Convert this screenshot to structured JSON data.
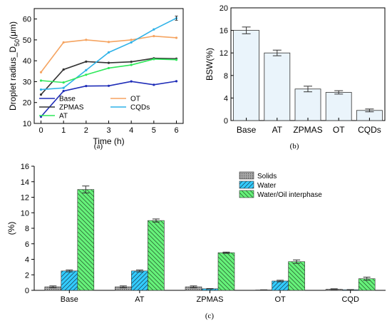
{
  "chart_data": [
    {
      "panel_label": "(a)",
      "type": "line",
      "xlabel": "Time (h)",
      "ylabel_main": "Droplet radius_D",
      "ylabel_sub": "50",
      "ylabel_unit": "(μm)",
      "xlim": [
        -0.3,
        6.3
      ],
      "ylim": [
        10,
        65
      ],
      "xticks": [
        0,
        1,
        2,
        3,
        4,
        5,
        6
      ],
      "yticks": [
        10,
        20,
        30,
        40,
        50,
        60
      ],
      "x": [
        0,
        1,
        2,
        3,
        4,
        5,
        6
      ],
      "legend_placement": "bottom",
      "series": [
        {
          "name": "Base",
          "color": "#1f2db8",
          "values": [
            13.2,
            25.5,
            27.9,
            28.0,
            30.1,
            28.5,
            30.2
          ]
        },
        {
          "name": "OT",
          "color": "#f5a461",
          "values": [
            34.5,
            48.8,
            50.0,
            49.0,
            50.0,
            51.8,
            51.0
          ]
        },
        {
          "name": "ZPMAS",
          "color": "#333333",
          "values": [
            23.8,
            35.8,
            39.6,
            39.0,
            39.5,
            41.2,
            41.0
          ]
        },
        {
          "name": "CQDs",
          "color": "#2fb2e8",
          "values": [
            26.2,
            27.0,
            35.5,
            44.0,
            48.8,
            55.0,
            60.4
          ]
        },
        {
          "name": "AT",
          "color": "#2ee85a",
          "values": [
            30.5,
            29.6,
            33.3,
            36.5,
            38.0,
            40.8,
            40.5
          ]
        }
      ]
    },
    {
      "panel_label": "(b)",
      "type": "bar",
      "ylabel": "BSW(%)",
      "ylim": [
        0,
        20
      ],
      "yticks": [
        0,
        4,
        8,
        12,
        16,
        20
      ],
      "categories": [
        "Base",
        "AT",
        "ZPMAS",
        "OT",
        "CQDs"
      ],
      "values": [
        16.0,
        12.0,
        5.6,
        5.0,
        1.8
      ],
      "errors": [
        0.6,
        0.5,
        0.5,
        0.3,
        0.25
      ],
      "bar_color": "#eaf4fb"
    },
    {
      "panel_label": "(c)",
      "type": "bar",
      "ylabel": "(%)",
      "ylim": [
        0,
        16
      ],
      "yticks": [
        0,
        2,
        4,
        6,
        8,
        10,
        12,
        14,
        16
      ],
      "categories": [
        "Base",
        "AT",
        "ZPMAS",
        "OT",
        "CQD"
      ],
      "legend_placement": "top-right",
      "series": [
        {
          "name": "Solids",
          "color": "#a8a8a8",
          "values": [
            0.45,
            0.45,
            0.45,
            0.05,
            0.15
          ],
          "errors": [
            0.12,
            0.12,
            0.12,
            0.02,
            0.05
          ]
        },
        {
          "name": "Water",
          "color": "#33ccff",
          "values": [
            2.5,
            2.5,
            0.2,
            1.2,
            0.08
          ],
          "errors": [
            0.12,
            0.12,
            0.03,
            0.1,
            0.02
          ]
        },
        {
          "name": "Water/Oil interphase",
          "color": "#66f27a",
          "values": [
            13.0,
            9.0,
            4.85,
            3.7,
            1.5
          ],
          "errors": [
            0.45,
            0.2,
            0.08,
            0.22,
            0.2
          ]
        }
      ]
    }
  ]
}
